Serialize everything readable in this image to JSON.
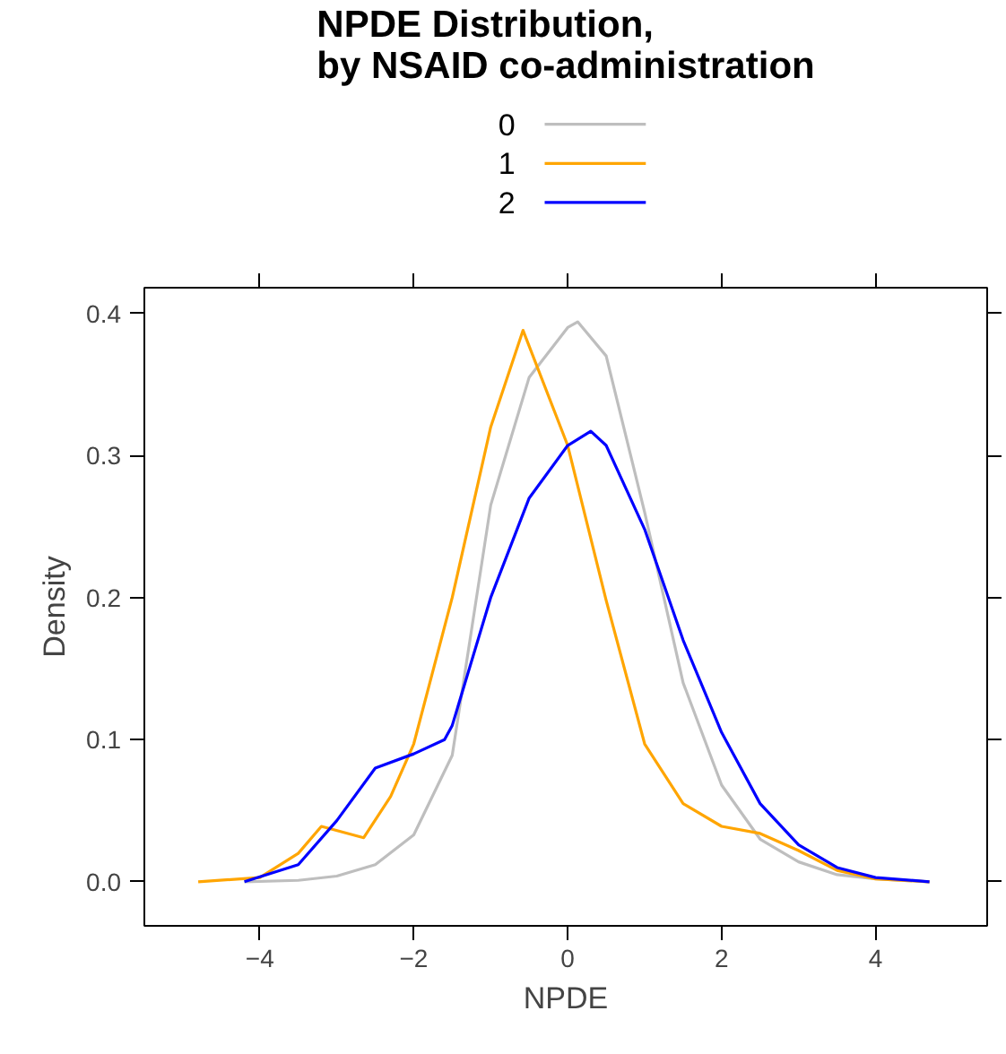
{
  "chart_data": {
    "type": "line",
    "title": "NPDE Distribution,\nby NSAID co-administration",
    "xlabel": "NPDE",
    "ylabel": "Density",
    "xlim": [
      -5.5,
      5.45
    ],
    "ylim": [
      -0.031,
      0.418
    ],
    "xticks": [
      -4,
      -2,
      0,
      2,
      4
    ],
    "yticks": [
      {
        "value": 0,
        "label": "0.0"
      },
      0.1,
      0.2,
      0.3,
      0.4
    ],
    "grid": false,
    "legend": "top",
    "marker": "none",
    "line_style": "solid",
    "series": [
      {
        "name": "0",
        "color": "#bebebe",
        "x": [
          -4.2,
          -3.5,
          -3,
          -2.5,
          -2,
          -1.5,
          -1,
          -0.5,
          0,
          0.13,
          0.5,
          1,
          1.5,
          2,
          2.5,
          3,
          3.5,
          4,
          4.7
        ],
        "values": [
          0,
          0.001,
          0.004,
          0.012,
          0.033,
          0.089,
          0.265,
          0.355,
          0.39,
          0.394,
          0.37,
          0.26,
          0.14,
          0.068,
          0.03,
          0.014,
          0.005,
          0.002,
          0
        ]
      },
      {
        "name": "1",
        "color": "#ffa500",
        "x": [
          -4.8,
          -4,
          -3.5,
          -3.2,
          -2.65,
          -2.3,
          -2,
          -1.5,
          -1,
          -0.58,
          0,
          0.5,
          1,
          1.5,
          2,
          2.5,
          3,
          3.5,
          4,
          4.7
        ],
        "values": [
          0,
          0.003,
          0.02,
          0.039,
          0.031,
          0.06,
          0.097,
          0.2,
          0.32,
          0.388,
          0.307,
          0.198,
          0.097,
          0.055,
          0.039,
          0.034,
          0.022,
          0.008,
          0.002,
          0
        ]
      },
      {
        "name": "2",
        "color": "#0000ff",
        "x": [
          -4.2,
          -3.5,
          -3,
          -2.5,
          -2,
          -1.6,
          -1.5,
          -1,
          -0.5,
          0,
          0.3,
          0.5,
          1,
          1.5,
          2,
          2.5,
          3,
          3.5,
          4,
          4.7
        ],
        "values": [
          0,
          0.012,
          0.043,
          0.08,
          0.09,
          0.1,
          0.11,
          0.2,
          0.27,
          0.307,
          0.317,
          0.307,
          0.248,
          0.17,
          0.105,
          0.055,
          0.026,
          0.01,
          0.003,
          0
        ]
      }
    ]
  }
}
